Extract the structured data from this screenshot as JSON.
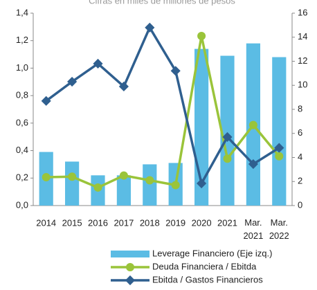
{
  "chart_data": {
    "type": "bar-line",
    "title": "Cifras en miles de millones de pesos",
    "categories": [
      "2014",
      "2015",
      "2016",
      "2017",
      "2018",
      "2019",
      "2020",
      "2021",
      "Mar. 2021",
      "Mar. 2022"
    ],
    "series": [
      {
        "name": "Leverage Financiero (Eje izq.)",
        "type": "bar",
        "color": "#5bbce4",
        "values": [
          0.39,
          0.32,
          0.22,
          0.22,
          0.3,
          0.31,
          1.14,
          1.09,
          1.18,
          1.08
        ]
      },
      {
        "name": "Deuda Financiera / Ebitda",
        "type": "line",
        "axis": "y2",
        "color": "#9ac43a",
        "marker": "circle",
        "values": [
          2.36,
          2.4,
          1.5,
          2.5,
          2.1,
          1.7,
          14.1,
          3.9,
          6.7,
          4.1
        ]
      },
      {
        "name": "Ebitda / Gastos Financieros",
        "type": "line",
        "axis": "y2",
        "color": "#2f5f8f",
        "marker": "diamond",
        "values": [
          8.7,
          10.3,
          11.8,
          9.9,
          14.8,
          11.2,
          1.84,
          5.7,
          3.45,
          4.8
        ]
      }
    ],
    "ylim": [
      0,
      1.4
    ],
    "yticks": [
      {
        "value": 0,
        "label": "0,0"
      },
      {
        "value": 0.2,
        "label": "0,2"
      },
      {
        "value": 0.4,
        "label": "0,4"
      },
      {
        "value": 0.6,
        "label": "0,6"
      },
      {
        "value": 0.8,
        "label": "0,8"
      },
      {
        "value": 1.0,
        "label": "1,0"
      },
      {
        "value": 1.2,
        "label": "1,2"
      },
      {
        "value": 1.4,
        "label": "1,4"
      }
    ],
    "y2lim": [
      0,
      16
    ],
    "y2ticks": [
      0,
      2,
      4,
      6,
      8,
      10,
      12,
      14,
      16
    ]
  }
}
